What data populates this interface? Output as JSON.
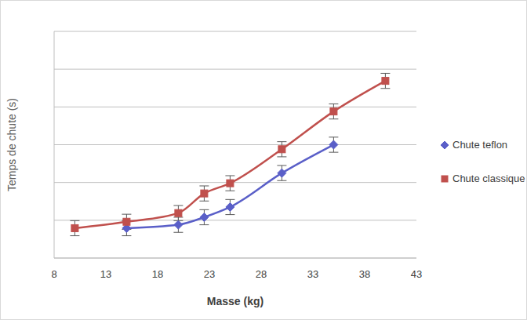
{
  "chart_data": {
    "type": "line",
    "x_label": "Masse (kg)",
    "y_label": "Temps de chute (s)",
    "x": [
      10,
      15,
      20,
      22.5,
      25,
      30,
      35,
      40
    ],
    "series": [
      {
        "name": "Chute teflon",
        "color": "#5A5FC8",
        "marker": "diamond",
        "values": [
          null,
          0.79,
          0.88,
          1.08,
          1.35,
          2.25,
          3.0,
          null
        ],
        "errors": [
          null,
          0.2,
          0.2,
          0.2,
          0.2,
          0.2,
          0.2,
          null
        ]
      },
      {
        "name": "Chute classique",
        "color": "#C0504D",
        "marker": "square",
        "values": [
          0.79,
          0.96,
          1.19,
          1.71,
          1.98,
          2.88,
          3.88,
          4.69
        ],
        "errors": [
          0.2,
          0.2,
          0.2,
          0.2,
          0.2,
          0.2,
          0.2,
          0.2
        ]
      }
    ],
    "xlim": [
      8,
      43
    ],
    "xticks": [
      8,
      13,
      18,
      23,
      28,
      33,
      38,
      43
    ],
    "ylim": [
      0,
      6
    ],
    "yticks": [
      0,
      1,
      2,
      3,
      4,
      5,
      6
    ],
    "grid": true,
    "legend": "right",
    "tick_labels": "x"
  }
}
